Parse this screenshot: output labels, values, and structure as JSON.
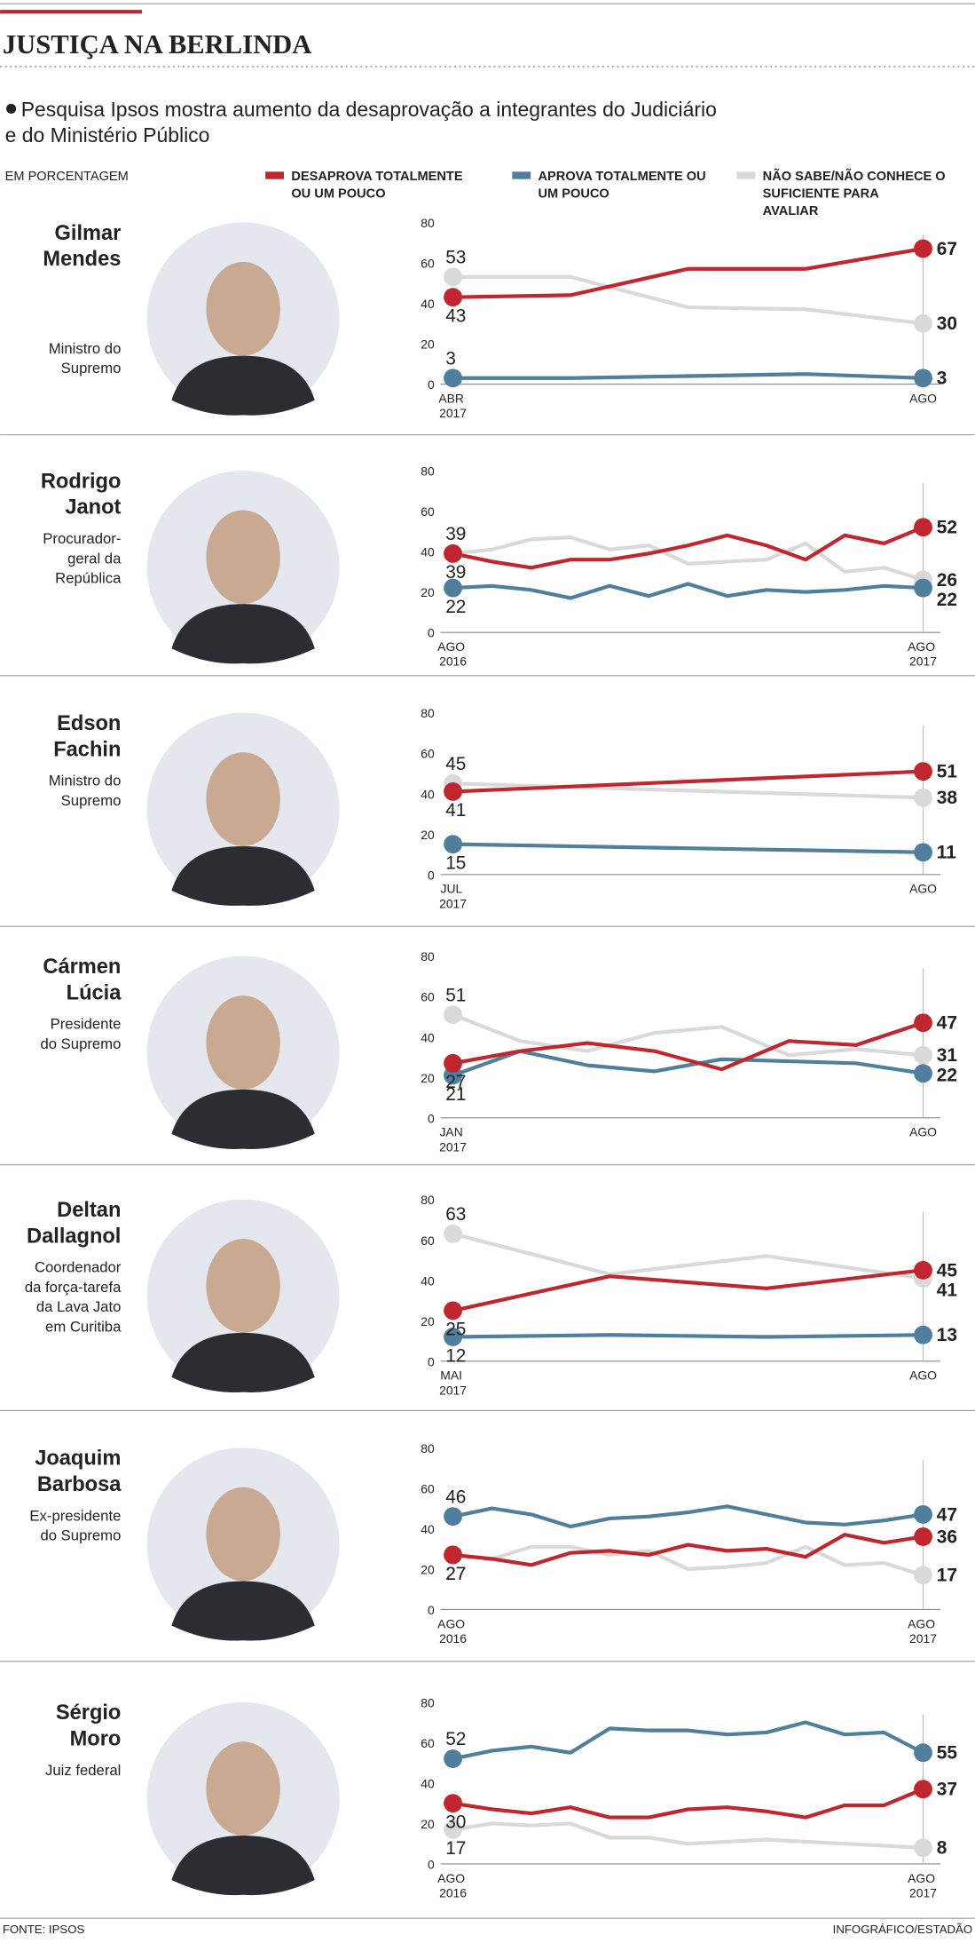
{
  "header": {
    "title": "JUSTIÇA NA BERLINDA",
    "subtitle": [
      "Pesquisa Ipsos mostra aumento da desaprovação a integrantes do Judiciário",
      "e do Ministério Público"
    ],
    "unit": "EM PORCENTAGEM"
  },
  "footer": {
    "source": "FONTE: IPSOS",
    "credit": "INFOGRÁFICO/ESTADÃO"
  },
  "chart_data": [
    {
      "type": "line",
      "title": [
        "Gilmar",
        "Mendes"
      ],
      "subtitle": [
        "Ministro do",
        "Supremo"
      ],
      "categories": [
        "ABR 2017",
        null,
        null,
        null,
        "AGO"
      ],
      "ylim": [
        0,
        80
      ],
      "yticks": [
        0,
        20,
        40,
        60,
        80
      ],
      "grid": false,
      "series": [
        {
          "name": "DESAPROVA TOTALMENTE OU UM POUCO",
          "color": "#c0262d",
          "values": [
            43,
            44,
            57,
            57,
            67
          ]
        },
        {
          "name": "APROVA TOTALMENTE OU UM POUCO",
          "color": "#4f7f9c",
          "values": [
            3,
            3,
            4,
            5,
            3
          ]
        },
        {
          "name": "NÃO SABE/NÃO CONHECE O SUFICIENTE PARA AVALIAR",
          "color": "#d9d9d9",
          "values": [
            53,
            53,
            38,
            37,
            30
          ]
        }
      ]
    },
    {
      "type": "line",
      "title": [
        "Rodrigo",
        "Janot"
      ],
      "subtitle": [
        "Procurador-",
        "geral da",
        "República"
      ],
      "categories": [
        "AGO 2016",
        null,
        null,
        null,
        null,
        null,
        null,
        null,
        null,
        null,
        null,
        null,
        "AGO 2017"
      ],
      "ylim": [
        0,
        80
      ],
      "yticks": [
        0,
        20,
        40,
        60,
        80
      ],
      "grid": false,
      "series": [
        {
          "name": "DESAPROVA TOTALMENTE OU UM POUCO",
          "color": "#c0262d",
          "values": [
            39,
            35,
            32,
            36,
            36,
            39,
            43,
            48,
            43,
            36,
            48,
            44,
            52
          ]
        },
        {
          "name": "APROVA TOTALMENTE OU UM POUCO",
          "color": "#4f7f9c",
          "values": [
            22,
            23,
            21,
            17,
            23,
            18,
            24,
            18,
            21,
            20,
            21,
            23,
            22
          ]
        },
        {
          "name": "NÃO SABE/NÃO CONHECE O SUFICIENTE PARA AVALIAR",
          "color": "#d9d9d9",
          "values": [
            39,
            41,
            46,
            47,
            41,
            43,
            34,
            35,
            36,
            44,
            30,
            32,
            26
          ]
        }
      ]
    },
    {
      "type": "line",
      "title": [
        "Edson",
        "Fachin"
      ],
      "subtitle": [
        "Ministro do",
        "Supremo"
      ],
      "categories": [
        "JUL 2017",
        "AGO"
      ],
      "ylim": [
        0,
        80
      ],
      "yticks": [
        0,
        20,
        40,
        60,
        80
      ],
      "grid": false,
      "series": [
        {
          "name": "DESAPROVA TOTALMENTE OU UM POUCO",
          "color": "#c0262d",
          "values": [
            41,
            51
          ]
        },
        {
          "name": "APROVA TOTALMENTE OU UM POUCO",
          "color": "#4f7f9c",
          "values": [
            15,
            11
          ]
        },
        {
          "name": "NÃO SABE/NÃO CONHECE O SUFICIENTE PARA AVALIAR",
          "color": "#d9d9d9",
          "values": [
            45,
            38
          ]
        }
      ]
    },
    {
      "type": "line",
      "title": [
        "Cármen",
        "Lúcia"
      ],
      "subtitle": [
        "Presidente",
        "do Supremo"
      ],
      "categories": [
        "JAN 2017",
        null,
        null,
        null,
        null,
        null,
        null,
        "AGO"
      ],
      "ylim": [
        0,
        80
      ],
      "yticks": [
        0,
        20,
        40,
        60,
        80
      ],
      "grid": false,
      "series": [
        {
          "name": "DESAPROVA TOTALMENTE OU UM POUCO",
          "color": "#c0262d",
          "values": [
            27,
            33,
            37,
            33,
            24,
            38,
            36,
            47
          ]
        },
        {
          "name": "APROVA TOTALMENTE OU UM POUCO",
          "color": "#4f7f9c",
          "values": [
            21,
            33,
            26,
            23,
            29,
            28,
            27,
            22
          ]
        },
        {
          "name": "NÃO SABE/NÃO CONHECE O SUFICIENTE PARA AVALIAR",
          "color": "#d9d9d9",
          "values": [
            51,
            38,
            33,
            42,
            45,
            31,
            34,
            31
          ]
        }
      ]
    },
    {
      "type": "line",
      "title": [
        "Deltan",
        "Dallagnol"
      ],
      "subtitle": [
        "Coordenador",
        "da força-tarefa",
        "da Lava Jato",
        "em Curitiba"
      ],
      "categories": [
        "MAI 2017",
        null,
        null,
        "AGO"
      ],
      "ylim": [
        0,
        80
      ],
      "yticks": [
        0,
        20,
        40,
        60,
        80
      ],
      "grid": false,
      "series": [
        {
          "name": "DESAPROVA TOTALMENTE OU UM POUCO",
          "color": "#c0262d",
          "values": [
            25,
            42,
            36,
            45
          ]
        },
        {
          "name": "APROVA TOTALMENTE OU UM POUCO",
          "color": "#4f7f9c",
          "values": [
            12,
            13,
            12,
            13
          ]
        },
        {
          "name": "NÃO SABE/NÃO CONHECE O SUFICIENTE PARA AVALIAR",
          "color": "#d9d9d9",
          "values": [
            63,
            43,
            52,
            41
          ]
        }
      ]
    },
    {
      "type": "line",
      "title": [
        "Joaquim",
        "Barbosa"
      ],
      "subtitle": [
        "Ex-presidente",
        "do Supremo"
      ],
      "categories": [
        "AGO 2016",
        null,
        null,
        null,
        null,
        null,
        null,
        null,
        null,
        null,
        null,
        null,
        "AGO 2017"
      ],
      "ylim": [
        0,
        80
      ],
      "yticks": [
        0,
        20,
        40,
        60,
        80
      ],
      "grid": false,
      "series": [
        {
          "name": "DESAPROVA TOTALMENTE OU UM POUCO",
          "color": "#c0262d",
          "values": [
            27,
            25,
            22,
            28,
            29,
            27,
            32,
            29,
            30,
            26,
            37,
            33,
            36
          ]
        },
        {
          "name": "APROVA TOTALMENTE OU UM POUCO",
          "color": "#4f7f9c",
          "values": [
            46,
            50,
            47,
            41,
            45,
            46,
            48,
            51,
            47,
            43,
            42,
            44,
            47
          ]
        },
        {
          "name": "NÃO SABE/NÃO CONHECE O SUFICIENTE PARA AVALIAR",
          "color": "#d9d9d9",
          "values": [
            27,
            25,
            31,
            31,
            27,
            29,
            20,
            21,
            23,
            31,
            22,
            23,
            17
          ]
        }
      ]
    },
    {
      "type": "line",
      "title": [
        "Sérgio",
        "Moro"
      ],
      "subtitle": [
        "Juiz federal"
      ],
      "categories": [
        "AGO 2016",
        null,
        null,
        null,
        null,
        null,
        null,
        null,
        null,
        null,
        null,
        null,
        "AGO 2017"
      ],
      "ylim": [
        0,
        80
      ],
      "yticks": [
        0,
        20,
        40,
        60,
        80
      ],
      "grid": false,
      "series": [
        {
          "name": "DESAPROVA TOTALMENTE OU UM POUCO",
          "color": "#c0262d",
          "values": [
            30,
            27,
            25,
            28,
            23,
            23,
            27,
            28,
            26,
            23,
            29,
            29,
            37
          ]
        },
        {
          "name": "APROVA TOTALMENTE OU UM POUCO",
          "color": "#4f7f9c",
          "values": [
            52,
            56,
            58,
            55,
            67,
            66,
            66,
            64,
            65,
            70,
            64,
            65,
            55
          ]
        },
        {
          "name": "NÃO SABE/NÃO CONHECE O SUFICIENTE PARA AVALIAR",
          "color": "#d9d9d9",
          "values": [
            17,
            20,
            19,
            20,
            13,
            13,
            10,
            11,
            12,
            11,
            10,
            9,
            8
          ]
        }
      ]
    }
  ]
}
